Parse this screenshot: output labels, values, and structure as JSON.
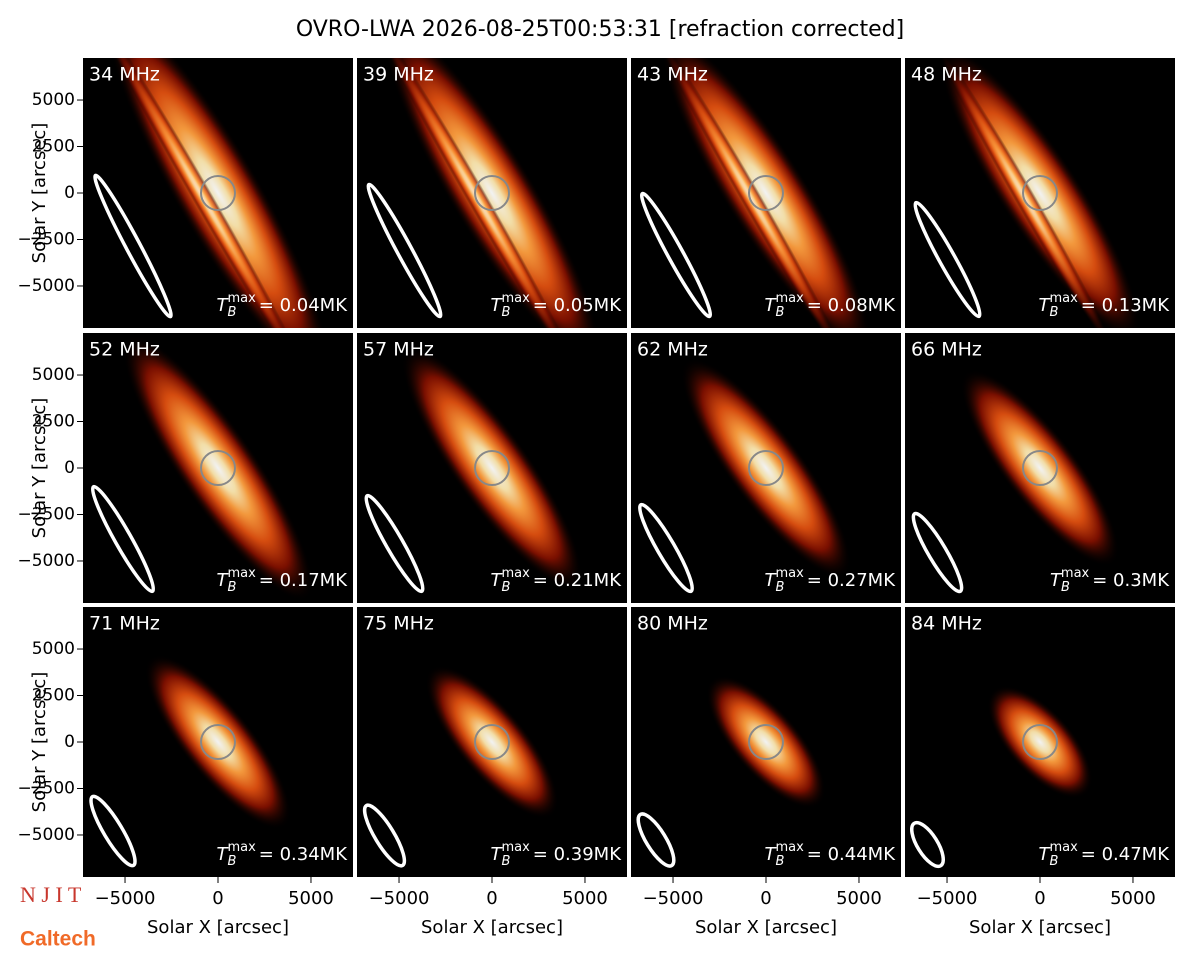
{
  "title": "OVRO-LWA 2026-08-25T00:53:31 [refraction corrected]",
  "axes": {
    "xlabel": "Solar X [arcsec]",
    "ylabel": "Solar Y [arcsec]",
    "xlim": [
      -7260,
      7260
    ],
    "ylim": [
      -7260,
      7260
    ],
    "xticks": [
      {
        "value": -5000,
        "label": "−5000"
      },
      0,
      5000
    ],
    "yticks": [
      {
        "value": -5000,
        "label": "−5000"
      },
      {
        "value": -2500,
        "label": "−2500"
      },
      0,
      2500,
      5000
    ]
  },
  "tb_symbol": {
    "base": "T",
    "sub": "B",
    "sup": "max"
  },
  "chart_data": [
    {
      "type": "image",
      "title": "34 MHz",
      "annotation": "= 0.04MK"
    },
    {
      "type": "image",
      "title": "39 MHz",
      "annotation": "= 0.05MK"
    },
    {
      "type": "image",
      "title": "43 MHz",
      "annotation": "= 0.08MK"
    },
    {
      "type": "image",
      "title": "48 MHz",
      "annotation": "= 0.13MK"
    },
    {
      "type": "image",
      "title": "52 MHz",
      "annotation": "= 0.17MK"
    },
    {
      "type": "image",
      "title": "57 MHz",
      "annotation": "= 0.21MK"
    },
    {
      "type": "image",
      "title": "62 MHz",
      "annotation": "= 0.27MK"
    },
    {
      "type": "image",
      "title": "66 MHz",
      "annotation": "= 0.3MK"
    },
    {
      "type": "image",
      "title": "71 MHz",
      "annotation": "= 0.34MK"
    },
    {
      "type": "image",
      "title": "75 MHz",
      "annotation": "= 0.39MK"
    },
    {
      "type": "image",
      "title": "80 MHz",
      "annotation": "= 0.44MK"
    },
    {
      "type": "image",
      "title": "84 MHz",
      "annotation": "= 0.47MK"
    }
  ],
  "logos": [
    "N J I T",
    "Caltech"
  ]
}
